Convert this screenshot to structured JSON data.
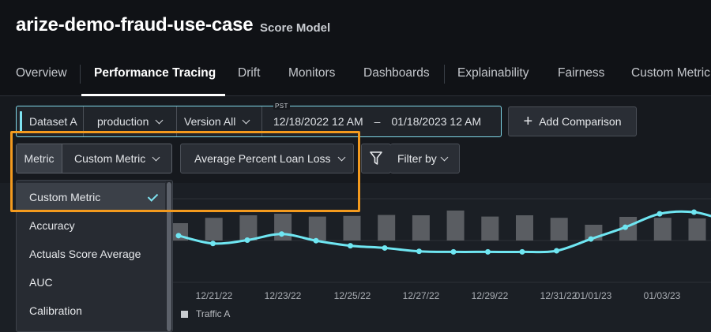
{
  "header": {
    "title": "arize-demo-fraud-use-case",
    "subtitle": "Score Model"
  },
  "tabs": [
    {
      "label": "Overview",
      "active": false
    },
    {
      "label": "Performance Tracing",
      "active": true
    },
    {
      "label": "Drift",
      "active": false
    },
    {
      "label": "Monitors",
      "active": false
    },
    {
      "label": "Dashboards",
      "active": false
    },
    {
      "label": "Explainability",
      "active": false
    },
    {
      "label": "Fairness",
      "active": false
    },
    {
      "label": "Custom Metric",
      "active": false
    }
  ],
  "dataset": {
    "label": "Dataset A",
    "environment": "production",
    "version": "Version All",
    "timezone": "PST",
    "start": "12/18/2022 12 AM",
    "separator": "–",
    "end": "01/18/2023 12 AM"
  },
  "add_comparison": "Add Comparison",
  "metric": {
    "label": "Metric",
    "value": "Custom Metric"
  },
  "custom_metric_select": "Average Percent Loan Loss",
  "filter_by": "Filter by",
  "metric_dropdown": {
    "options": [
      "Custom Metric",
      "Accuracy",
      "Actuals Score Average",
      "AUC",
      "Calibration"
    ],
    "selected": "Custom Metric"
  },
  "chart_data": {
    "type": "line",
    "x_tick_labels": [
      "12/21/22",
      "12/23/22",
      "12/25/22",
      "12/27/22",
      "12/29/22",
      "12/31/22",
      "01/01/23",
      "01/03/23"
    ],
    "series": [
      {
        "name": "",
        "kind": "line",
        "color": "#6fe6f2",
        "values": [
          0.58,
          0.44,
          0.5,
          0.61,
          0.49,
          0.4,
          0.36,
          0.3,
          0.29,
          0.29,
          0.29,
          0.31,
          0.52,
          0.73,
          0.97,
          1.0,
          0.85,
          0.82,
          0.74,
          0.74
        ]
      },
      {
        "name": "Traffic A",
        "kind": "bar",
        "color": "#5a5d62",
        "values": [
          0.55,
          0.72,
          0.8,
          0.85,
          0.76,
          0.78,
          0.81,
          0.8,
          0.95,
          0.76,
          0.8,
          0.72,
          0.5,
          0.75,
          0.72,
          0.7
        ]
      }
    ],
    "grid": true,
    "legend_position": "bottom-left"
  },
  "icons": {
    "filter": "filter-funnel-icon",
    "plus": "plus-icon",
    "check": "check-icon"
  },
  "colors": {
    "accent": "#7fe3f1",
    "highlight": "#f39a1e",
    "line": "#6fe6f2"
  }
}
